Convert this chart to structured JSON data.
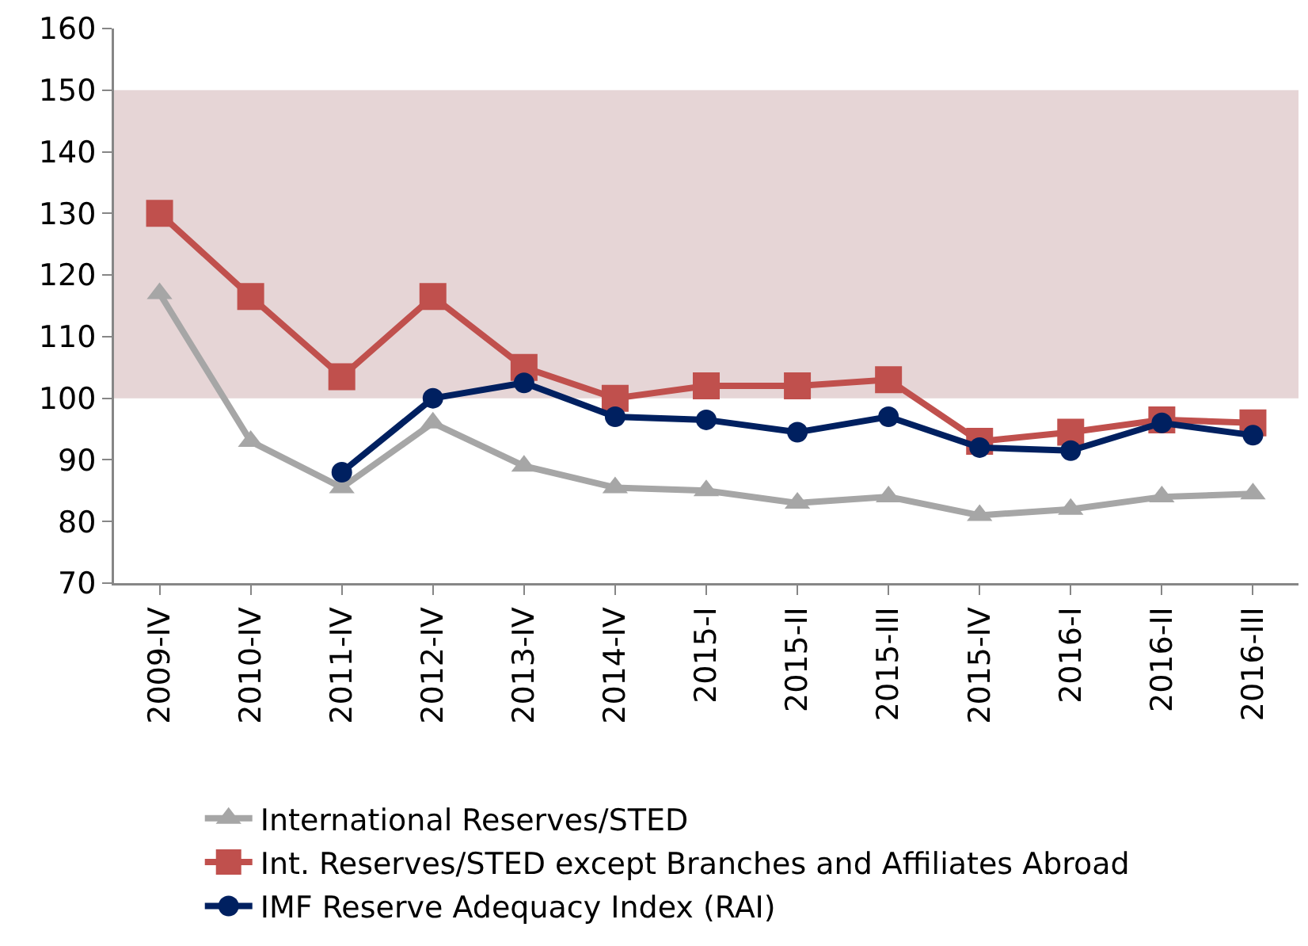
{
  "chart_data": {
    "type": "line",
    "categories": [
      "2009-IV",
      "2010-IV",
      "2011-IV",
      "2012-IV",
      "2013-IV",
      "2014-IV",
      "2015-I",
      "2015-II",
      "2015-III",
      "2015-IV",
      "2016-I",
      "2016-II",
      "2016-III"
    ],
    "series": [
      {
        "name": "International Reserves/STED",
        "color": "#a6a6a6",
        "marker": "triangle",
        "values": [
          117,
          93,
          85.5,
          96,
          89,
          85.5,
          85,
          83,
          84,
          81,
          82,
          84,
          84.5
        ]
      },
      {
        "name": "Int. Reserves/STED except Branches and Affiliates Abroad",
        "color": "#c0504d",
        "marker": "square",
        "values": [
          130,
          116.5,
          103.5,
          116.5,
          105,
          100,
          102,
          102,
          103,
          93,
          94.5,
          96.5,
          96
        ]
      },
      {
        "name": "IMF Reserve Adequacy Index (RAI)",
        "color": "#002060",
        "marker": "circle",
        "values": [
          null,
          null,
          88,
          100,
          102.5,
          97,
          96.5,
          94.5,
          97,
          92,
          91.5,
          96,
          94
        ]
      }
    ],
    "ylim": [
      70,
      160
    ],
    "yticks": [
      70,
      80,
      90,
      100,
      110,
      120,
      130,
      140,
      150,
      160
    ],
    "bands": [
      {
        "axis": "y",
        "from": 100,
        "to": 150,
        "color": "#e6d5d6"
      }
    ],
    "grid": false,
    "legend": "bottom",
    "line_style": "solid"
  }
}
